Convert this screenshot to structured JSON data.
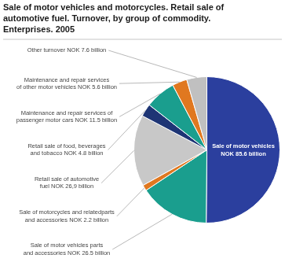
{
  "chart_data": {
    "type": "pie",
    "title": "Sale of motor vehicles and motorcycles. Retail sale of\nautomotive fuel. Turnover, by group of commodity.\nEnterprises. 2005",
    "categories": [
      "Sale of motor vehicles\nNOK 85.6 billion",
      "Sale of motor vehicles parts\nand accessories NOK 26.5 billion",
      "Sale of motorcycles and relatedparts\nand accessories NOK 2.2 billion",
      "Retail sale of automotive\nfuel NOK 26,9 billion",
      "Retail sale of food, beverages\nand tobacco NOK 4.8 billion",
      "Maintenance and repair services of\npassenger motor cars NOK 11.5 billion",
      "Maintenance and repair services\nof other motor vehicles NOK 5.6 billion",
      "Other turnover NOK 7.6 billion"
    ],
    "values": [
      85.6,
      26.5,
      2.2,
      26.9,
      4.8,
      11.5,
      5.6,
      7.6
    ],
    "colors": [
      "#2b3f9e",
      "#1a9e8e",
      "#e07820",
      "#c8c8c8",
      "#1e3575",
      "#1a9e8e",
      "#e07820",
      "#c0c0c0"
    ]
  }
}
